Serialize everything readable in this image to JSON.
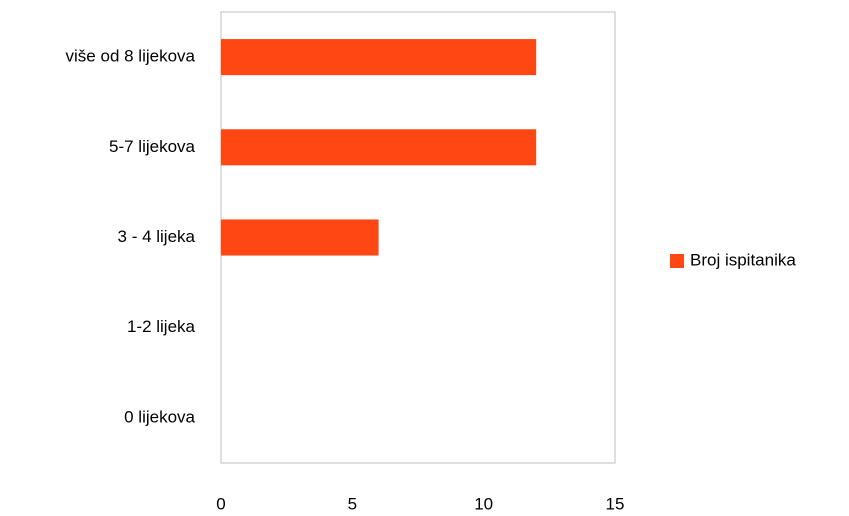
{
  "chart_data": {
    "type": "bar",
    "orientation": "horizontal",
    "categories": [
      "0 lijekova",
      "1-2 lijeka",
      "3 - 4 lijeka",
      "5-7 lijekova",
      "više od 8 lijekova"
    ],
    "series": [
      {
        "name": "Broj ispitanika",
        "color": "#ff4713",
        "values": [
          0,
          0,
          6,
          12,
          12
        ]
      }
    ],
    "xlim": [
      0,
      15
    ],
    "xticks": [
      0,
      5,
      10,
      15
    ],
    "grid": false,
    "legend": "right"
  }
}
